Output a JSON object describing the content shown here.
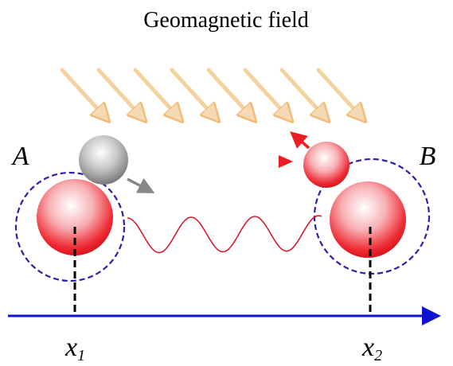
{
  "title": "Geomagnetic field",
  "points": [
    {
      "label": "A",
      "x_var": "x",
      "x_sub": "1"
    },
    {
      "label": "B",
      "x_var": "x",
      "x_sub": "2"
    }
  ]
}
